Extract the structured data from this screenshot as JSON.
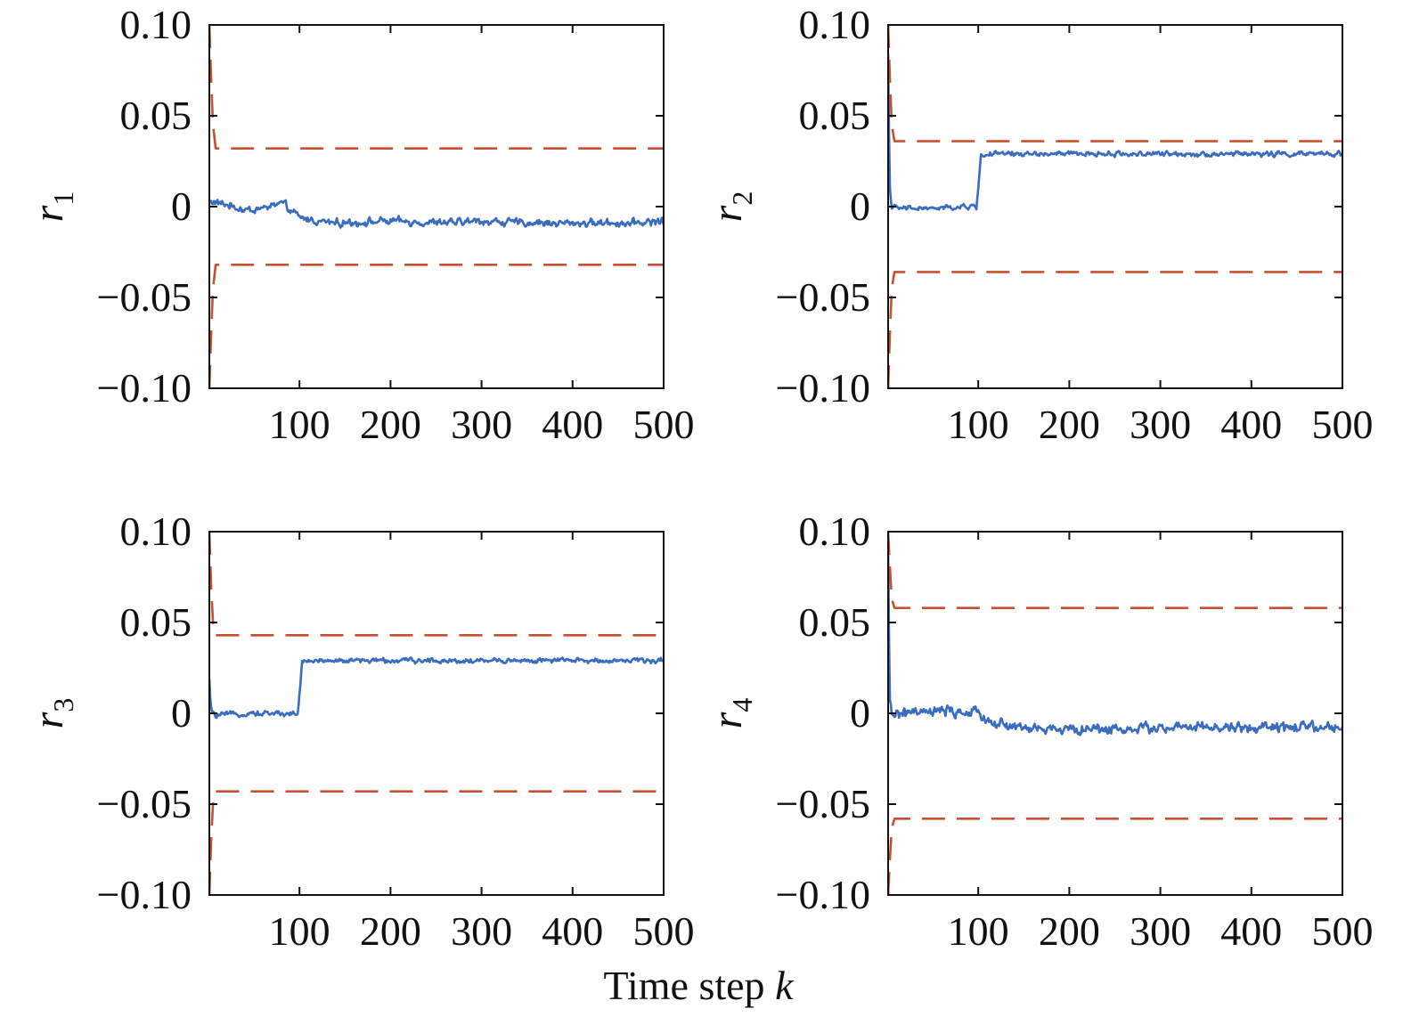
{
  "figure": {
    "xlabel_prefix": "Time step ",
    "xlabel_var": "k"
  },
  "colors": {
    "residual": "#3a6cbf",
    "threshold": "#c8502e",
    "axis": "#111111"
  },
  "chart_data": [
    {
      "type": "line",
      "panel": "top-left",
      "ylabel_var": "r",
      "ylabel_sub": "1",
      "xlim": [
        1,
        500
      ],
      "ylim": [
        -0.1,
        0.1
      ],
      "xticks": [
        100,
        200,
        300,
        400,
        500
      ],
      "xtick_labels": [
        "100",
        "200",
        "300",
        "400",
        "500"
      ],
      "yticks": [
        0.1,
        0.05,
        0,
        -0.05,
        -0.1
      ],
      "ytick_labels": [
        "0.10",
        "0.05",
        "0",
        "−0.05",
        "−0.10"
      ],
      "grid": false,
      "series": [
        {
          "style": "solid",
          "x": [
            1,
            20,
            40,
            60,
            80,
            100,
            120,
            150,
            200,
            250,
            300,
            350,
            400,
            450,
            500
          ],
          "y": [
            0.003,
            0.001,
            -0.002,
            -0.001,
            0.002,
            -0.006,
            -0.008,
            -0.009,
            -0.008,
            -0.009,
            -0.008,
            -0.009,
            -0.009,
            -0.009,
            -0.008
          ],
          "noise": 0.003
        },
        {
          "style": "dashed",
          "x": [
            1,
            3,
            5,
            8,
            500
          ],
          "y": [
            0.1,
            0.07,
            0.045,
            0.032,
            0.032
          ]
        },
        {
          "style": "dashed",
          "x": [
            1,
            3,
            5,
            8,
            500
          ],
          "y": [
            -0.1,
            -0.07,
            -0.045,
            -0.032,
            -0.032
          ]
        }
      ]
    },
    {
      "type": "line",
      "panel": "top-right",
      "ylabel_var": "r",
      "ylabel_sub": "2",
      "xlim": [
        1,
        500
      ],
      "ylim": [
        -0.1,
        0.1
      ],
      "xticks": [
        100,
        200,
        300,
        400,
        500
      ],
      "xtick_labels": [
        "100",
        "200",
        "300",
        "400",
        "500"
      ],
      "yticks": [
        0.1,
        0.05,
        0,
        -0.05,
        -0.1
      ],
      "ytick_labels": [
        "0.10",
        "0.05",
        "0",
        "−0.05",
        "−0.10"
      ],
      "grid": false,
      "series": [
        {
          "style": "solid",
          "x": [
            1,
            2,
            3,
            5,
            10,
            50,
            98,
            100,
            103,
            110,
            200,
            300,
            400,
            500
          ],
          "y": [
            0.085,
            0.04,
            0.01,
            0.0,
            -0.001,
            -0.001,
            0.0,
            0.01,
            0.028,
            0.029,
            0.029,
            0.029,
            0.029,
            0.029
          ],
          "noise": 0.002
        },
        {
          "style": "dashed",
          "x": [
            1,
            3,
            5,
            8,
            500
          ],
          "y": [
            0.1,
            0.07,
            0.045,
            0.036,
            0.036
          ]
        },
        {
          "style": "dashed",
          "x": [
            1,
            3,
            5,
            8,
            500
          ],
          "y": [
            -0.1,
            -0.07,
            -0.045,
            -0.036,
            -0.036
          ]
        }
      ]
    },
    {
      "type": "line",
      "panel": "bottom-left",
      "ylabel_var": "r",
      "ylabel_sub": "3",
      "xlim": [
        1,
        500
      ],
      "ylim": [
        -0.1,
        0.1
      ],
      "xticks": [
        100,
        200,
        300,
        400,
        500
      ],
      "xtick_labels": [
        "100",
        "200",
        "300",
        "400",
        "500"
      ],
      "yticks": [
        0.1,
        0.05,
        0,
        -0.05,
        -0.1
      ],
      "ytick_labels": [
        "0.10",
        "0.05",
        "0",
        "−0.05",
        "−0.10"
      ],
      "grid": false,
      "series": [
        {
          "style": "solid",
          "x": [
            1,
            2,
            4,
            8,
            50,
            98,
            100,
            103,
            110,
            200,
            300,
            400,
            500
          ],
          "y": [
            0.018,
            0.008,
            0.0,
            -0.001,
            0.0,
            0.0,
            0.01,
            0.028,
            0.029,
            0.029,
            0.029,
            0.029,
            0.029
          ],
          "noise": 0.002
        },
        {
          "style": "dashed",
          "x": [
            1,
            3,
            5,
            8,
            500
          ],
          "y": [
            0.1,
            0.07,
            0.05,
            0.043,
            0.043
          ]
        },
        {
          "style": "dashed",
          "x": [
            1,
            3,
            5,
            8,
            500
          ],
          "y": [
            -0.1,
            -0.07,
            -0.05,
            -0.043,
            -0.043
          ]
        }
      ]
    },
    {
      "type": "line",
      "panel": "bottom-right",
      "ylabel_var": "r",
      "ylabel_sub": "4",
      "xlim": [
        1,
        500
      ],
      "ylim": [
        -0.1,
        0.1
      ],
      "xticks": [
        100,
        200,
        300,
        400,
        500
      ],
      "xtick_labels": [
        "100",
        "200",
        "300",
        "400",
        "500"
      ],
      "yticks": [
        0.1,
        0.05,
        0,
        -0.05,
        -0.1
      ],
      "ytick_labels": [
        "0.10",
        "0.05",
        "0",
        "−0.05",
        "−0.10"
      ],
      "grid": false,
      "series": [
        {
          "style": "solid",
          "x": [
            1,
            2,
            3,
            5,
            20,
            60,
            100,
            120,
            150,
            200,
            300,
            400,
            500
          ],
          "y": [
            0.09,
            0.04,
            0.005,
            0.0,
            0.0,
            0.001,
            0.0,
            -0.006,
            -0.008,
            -0.009,
            -0.008,
            -0.008,
            -0.008
          ],
          "noise": 0.004
        },
        {
          "style": "dashed",
          "x": [
            1,
            3,
            5,
            8,
            500
          ],
          "y": [
            0.1,
            0.08,
            0.063,
            0.058,
            0.058
          ]
        },
        {
          "style": "dashed",
          "x": [
            1,
            3,
            5,
            8,
            500
          ],
          "y": [
            -0.1,
            -0.08,
            -0.063,
            -0.058,
            -0.058
          ]
        }
      ]
    }
  ]
}
